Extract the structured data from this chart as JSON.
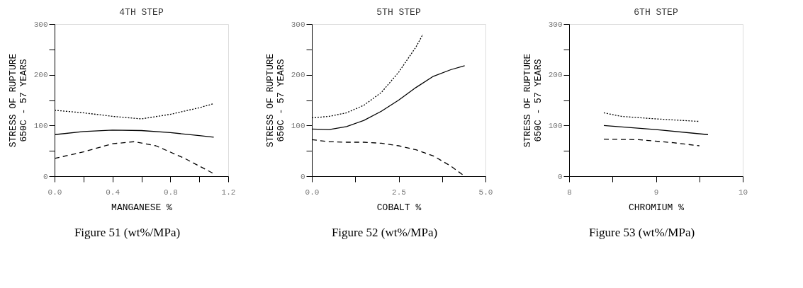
{
  "chart_data": [
    {
      "type": "line",
      "title": "4TH   STEP",
      "xlabel": "MANGANESE   %",
      "ylabel": "STRESS OF RUPTURE\n650C - 57 YEARS",
      "annotations": [
        "Figure 51 (wt%/MPa)"
      ],
      "grid": false,
      "legend": false,
      "marker": "none",
      "xlim": [
        0,
        1.2
      ],
      "xticks": [
        {
          "value": 0,
          "label": "0.0"
        },
        {
          "value": 0.2,
          "label": null
        },
        0.4,
        {
          "value": 0.6,
          "label": null
        },
        0.8,
        {
          "value": 1.0,
          "label": null
        },
        1.2
      ],
      "ylim": [
        0,
        300
      ],
      "yticks": [
        0,
        {
          "value": 50,
          "label": null
        },
        100,
        {
          "value": 150,
          "label": null
        },
        200,
        {
          "value": 250,
          "label": null
        },
        300
      ],
      "series": [
        {
          "color": "#000000",
          "line_style": "dotted",
          "x": [
            0,
            0.2,
            0.4,
            0.6,
            0.8,
            1.0,
            1.1
          ],
          "values": [
            130,
            125,
            118,
            113,
            122,
            135,
            143
          ]
        },
        {
          "color": "#000000",
          "line_style": "solid",
          "x": [
            0,
            0.2,
            0.4,
            0.6,
            0.8,
            1.0,
            1.1
          ],
          "values": [
            82,
            88,
            91,
            90,
            86,
            80,
            77
          ]
        },
        {
          "color": "#000000",
          "line_style": "dashed",
          "x": [
            0,
            0.2,
            0.4,
            0.55,
            0.7,
            0.9,
            1.1
          ],
          "values": [
            35,
            48,
            64,
            68,
            60,
            35,
            5
          ]
        }
      ]
    },
    {
      "type": "line",
      "title": "5TH   STEP",
      "xlabel": "COBALT     %",
      "ylabel": "STRESS OF RUPTURE\n650C - 57 YEARS",
      "annotations": [
        "Figure 52 (wt%/MPa)"
      ],
      "grid": false,
      "legend": false,
      "marker": "none",
      "xlim": [
        0,
        5
      ],
      "xticks": [
        {
          "value": 0,
          "label": "0.0"
        },
        {
          "value": 1.25,
          "label": null
        },
        2.5,
        {
          "value": 3.75,
          "label": null
        },
        {
          "value": 5,
          "label": "5.0"
        }
      ],
      "ylim": [
        0,
        300
      ],
      "yticks": [
        0,
        {
          "value": 50,
          "label": null
        },
        100,
        {
          "value": 150,
          "label": null
        },
        200,
        {
          "value": 250,
          "label": null
        },
        300
      ],
      "series": [
        {
          "color": "#000000",
          "line_style": "dotted",
          "x": [
            0,
            0.5,
            1,
            1.5,
            2,
            2.5,
            3,
            3.2
          ],
          "values": [
            115,
            118,
            125,
            140,
            165,
            205,
            255,
            280
          ]
        },
        {
          "color": "#000000",
          "line_style": "solid",
          "x": [
            0,
            0.5,
            1,
            1.5,
            2,
            2.5,
            3,
            3.5,
            4,
            4.4
          ],
          "values": [
            93,
            92,
            98,
            110,
            128,
            150,
            175,
            197,
            210,
            218
          ]
        },
        {
          "color": "#000000",
          "line_style": "dashed",
          "x": [
            0,
            0.5,
            1,
            1.5,
            2,
            2.5,
            3,
            3.5,
            4,
            4.4
          ],
          "values": [
            72,
            68,
            67,
            67,
            65,
            60,
            52,
            40,
            20,
            0
          ]
        }
      ]
    },
    {
      "type": "line",
      "title": "6TH  STEP",
      "xlabel": "CHROMIUM   %",
      "ylabel": "STRESS OF RUPTURE\n650C - 57 YEARS",
      "annotations": [
        "Figure 53 (wt%/MPa)"
      ],
      "grid": false,
      "legend": false,
      "marker": "none",
      "xlim": [
        8,
        10
      ],
      "xticks": [
        8,
        {
          "value": 8.5,
          "label": null
        },
        9,
        {
          "value": 9.5,
          "label": null
        },
        10
      ],
      "ylim": [
        0,
        300
      ],
      "yticks": [
        0,
        {
          "value": 50,
          "label": null
        },
        100,
        {
          "value": 150,
          "label": null
        },
        200,
        {
          "value": 250,
          "label": null
        },
        300
      ],
      "series": [
        {
          "color": "#000000",
          "line_style": "dotted",
          "x": [
            8.4,
            8.6,
            9,
            9.5
          ],
          "values": [
            125,
            118,
            113,
            108
          ]
        },
        {
          "color": "#000000",
          "line_style": "solid",
          "x": [
            8.4,
            9,
            9.6
          ],
          "values": [
            100,
            92,
            82
          ]
        },
        {
          "color": "#000000",
          "line_style": "dashed",
          "x": [
            8.4,
            8.8,
            9.2,
            9.5
          ],
          "values": [
            73,
            72,
            66,
            60
          ]
        }
      ]
    }
  ]
}
